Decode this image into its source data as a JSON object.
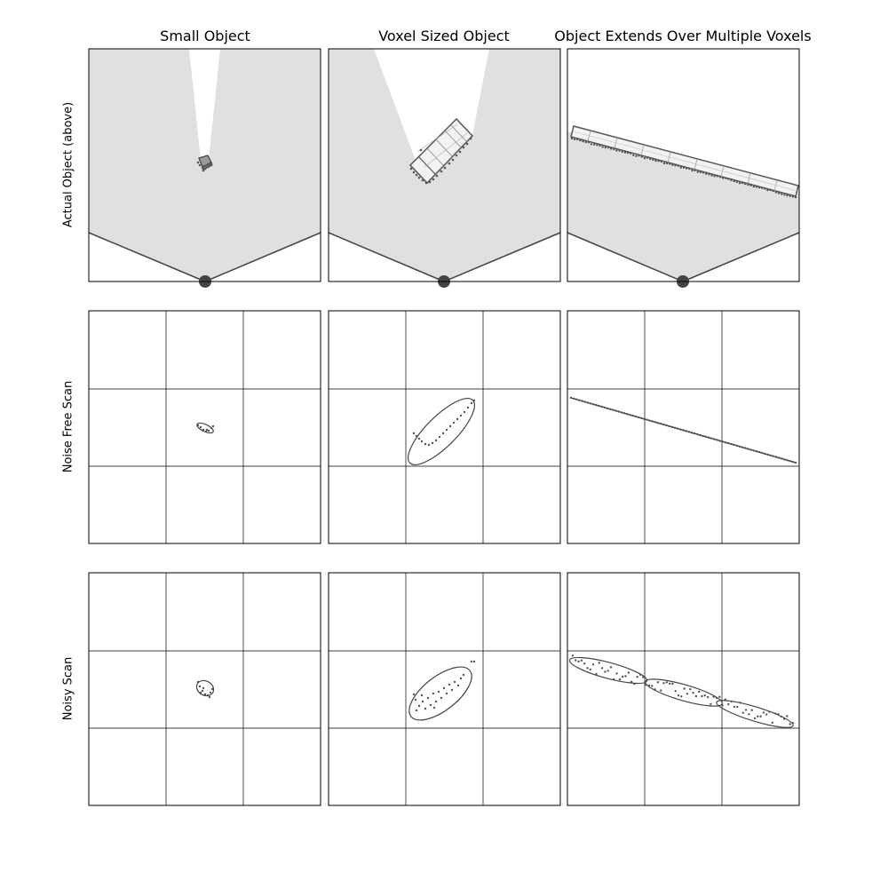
{
  "columns": [
    {
      "title": "Small Object"
    },
    {
      "title": "Voxel Sized Object"
    },
    {
      "title": "Object Extends Over Multiple Voxels"
    }
  ],
  "rows": [
    {
      "label": "Actual Object (above)"
    },
    {
      "label": "Noise Free Scan"
    },
    {
      "label": "Noisy Scan"
    }
  ],
  "colors": {
    "fov_fill": "#e0e0e0",
    "stroke": "#444444",
    "points": "#555555",
    "grid": "#000000"
  },
  "icons": [
    "sensor-icon",
    "cube-object-icon",
    "box-object-icon",
    "wall-object-icon"
  ]
}
